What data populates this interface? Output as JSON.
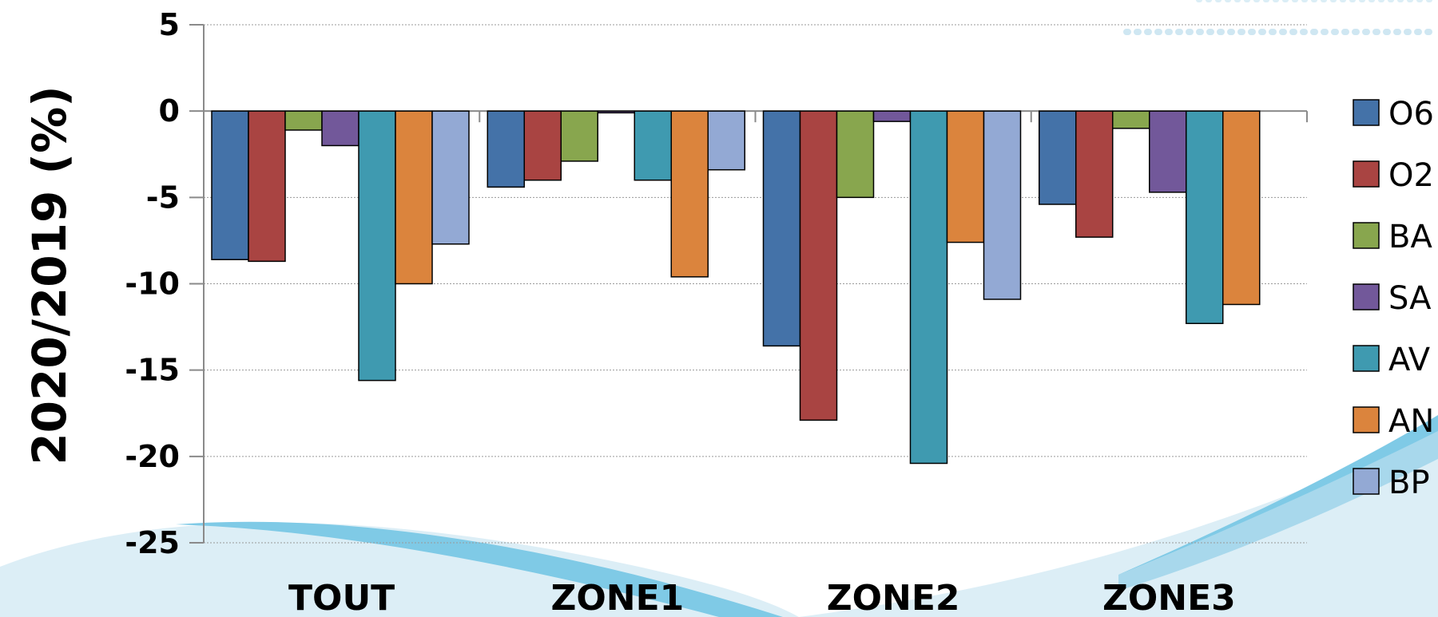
{
  "chart_data": {
    "type": "bar",
    "ylabel": "2020/2019 (%)",
    "ylim": [
      -25,
      5
    ],
    "yticks": [
      5,
      0,
      -5,
      -10,
      -15,
      -20,
      -25
    ],
    "grid": true,
    "legend_position": "right",
    "categories": [
      "TOUT",
      "ZONE1",
      "ZONE2",
      "ZONE3"
    ],
    "series": [
      {
        "name": "O6",
        "color": "#4472A8",
        "values": [
          -8.6,
          -4.4,
          -13.6,
          -5.4
        ]
      },
      {
        "name": "O2",
        "color": "#A94442",
        "values": [
          -8.7,
          -4.0,
          -17.9,
          -7.3
        ]
      },
      {
        "name": "BA",
        "color": "#88A64E",
        "values": [
          -1.1,
          -2.9,
          -5.0,
          -1.0
        ]
      },
      {
        "name": "SA",
        "color": "#72589A",
        "values": [
          -2.0,
          -0.1,
          -0.6,
          -4.7
        ]
      },
      {
        "name": "AV",
        "color": "#3F9AB0",
        "values": [
          -15.6,
          -4.0,
          -20.4,
          -12.3
        ]
      },
      {
        "name": "AN",
        "color": "#DB843D",
        "values": [
          -10.0,
          -9.6,
          -7.6,
          -11.2
        ]
      },
      {
        "name": "BP",
        "color": "#93A9D4",
        "values": [
          -7.7,
          -3.4,
          -10.9,
          null
        ]
      }
    ]
  }
}
